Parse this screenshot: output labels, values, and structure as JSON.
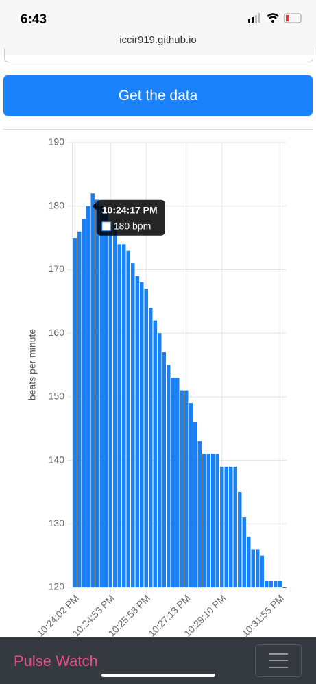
{
  "status_bar": {
    "time": "6:43"
  },
  "address_bar": {
    "url": "iccir919.github.io"
  },
  "button": {
    "label": "Get the data"
  },
  "chart_data": {
    "type": "bar",
    "y_label": "beats per minute",
    "color": "#1a80f5",
    "categories": [
      "10:24:02 PM",
      null,
      null,
      null,
      null,
      null,
      null,
      null,
      "10:24:53 PM",
      null,
      null,
      null,
      null,
      null,
      null,
      null,
      "10:25:58 PM",
      null,
      null,
      null,
      null,
      null,
      null,
      null,
      null,
      "10:27:13 PM",
      null,
      null,
      null,
      null,
      null,
      null,
      null,
      "10:29:10 PM",
      null,
      null,
      null,
      null,
      null,
      null,
      null,
      null,
      null,
      null,
      null,
      null,
      "10:31:55 PM",
      null
    ],
    "values": [
      175,
      176,
      178,
      180,
      182,
      181,
      180,
      179,
      177,
      177,
      174,
      174,
      173,
      171,
      169,
      168,
      167,
      164,
      162,
      160,
      157,
      155,
      153,
      153,
      151,
      151,
      149,
      146,
      143,
      141,
      141,
      141,
      141,
      139,
      139,
      139,
      139,
      135,
      131,
      128,
      126,
      126,
      125,
      121,
      121,
      121,
      121,
      120
    ],
    "ylim": [
      120,
      190
    ],
    "yticks": [
      120,
      130,
      140,
      150,
      160,
      170,
      180,
      190
    ],
    "grid": true,
    "tooltip": {
      "title": "10:24:17 PM",
      "label": "180 bpm",
      "index": 3
    }
  },
  "navbar": {
    "brand": "Pulse Watch"
  }
}
